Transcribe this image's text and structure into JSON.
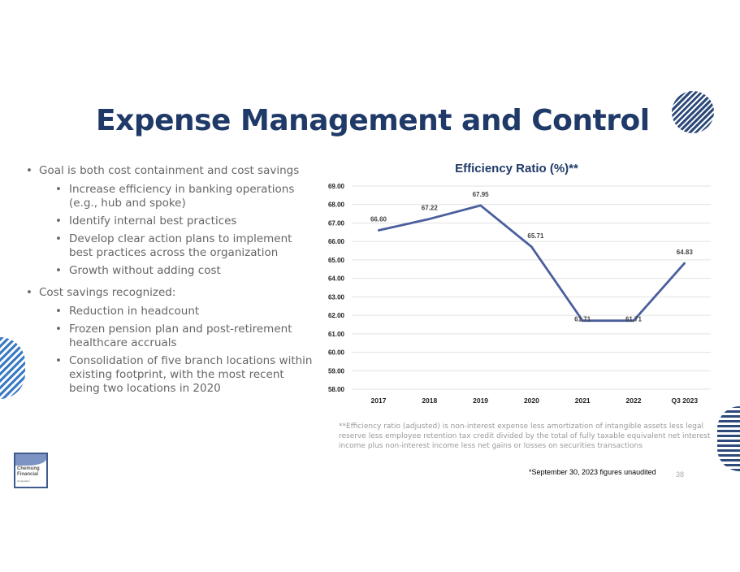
{
  "slide": {
    "title": "Expense Management and Control",
    "page_number": "38",
    "logo_text": [
      "Chemung",
      "Financial",
      "Corporation"
    ]
  },
  "bullets": [
    {
      "text": "Goal is both cost containment and cost savings",
      "sub": [
        "Increase efficiency in banking operations (e.g., hub and spoke)",
        "Identify internal best practices",
        "Develop clear action plans to implement best practices across the organization",
        "Growth without adding cost"
      ]
    },
    {
      "text": "Cost savings recognized:",
      "sub": [
        "Reduction in headcount",
        "Frozen pension plan and post-retirement healthcare accruals",
        "Consolidation of five branch locations within existing footprint, with the most recent being two locations in 2020"
      ]
    }
  ],
  "footnote": "**Efficiency ratio (adjusted) is non-interest expense less amortization of intangible assets less legal reserve less employee retention tax credit divided by the total of fully taxable equivalent net interest income plus non-interest income less net gains or losses on securities transactions",
  "unaudited_note": "*September 30, 2023 figures unaudited",
  "colors": {
    "title": "#1f3a68",
    "line": "#4a5f9e",
    "accent": "#2e4a7a"
  },
  "chart_data": {
    "type": "line",
    "title": "Efficiency Ratio (%)**",
    "categories": [
      "2017",
      "2018",
      "2019",
      "2020",
      "2021",
      "2022",
      "Q3 2023"
    ],
    "values": [
      66.6,
      67.22,
      67.95,
      65.71,
      61.71,
      61.71,
      64.83
    ],
    "data_labels": [
      "66.60",
      "67.22",
      "67.95",
      "65.71",
      "61.71",
      "61.71",
      "64.83"
    ],
    "ylim": [
      58,
      69
    ],
    "yticks": [
      "58.00",
      "59.00",
      "60.00",
      "61.00",
      "62.00",
      "63.00",
      "64.00",
      "65.00",
      "66.00",
      "67.00",
      "68.00",
      "69.00"
    ],
    "xlabel": "",
    "ylabel": "",
    "grid": true,
    "legend": "none"
  }
}
